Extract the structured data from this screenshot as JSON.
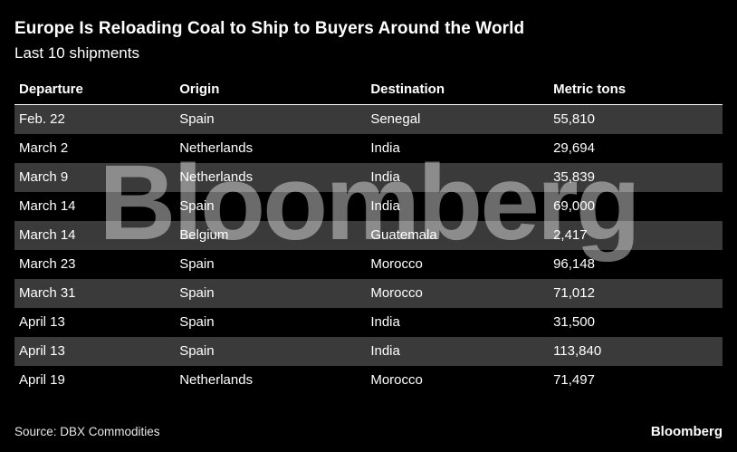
{
  "header": {
    "title": "Europe Is Reloading Coal to Ship to Buyers Around the World",
    "subtitle": "Last 10 shipments"
  },
  "watermark": {
    "text": "Bloomberg"
  },
  "footer": {
    "source": "Source: DBX Commodities",
    "brand": "Bloomberg"
  },
  "colors": {
    "background": "#000000",
    "row_alt": "#3a3a3a",
    "text": "#ffffff",
    "header_rule": "#ffffff",
    "watermark": "rgba(255,255,255,0.42)"
  },
  "chart_data": {
    "type": "table",
    "title": "Europe Is Reloading Coal to Ship to Buyers Around the World",
    "subtitle": "Last 10 shipments",
    "columns": [
      "Departure",
      "Origin",
      "Destination",
      "Metric tons"
    ],
    "rows": [
      [
        "Feb. 22",
        "Spain",
        "Senegal",
        "55,810"
      ],
      [
        "March 2",
        "Netherlands",
        "India",
        "29,694"
      ],
      [
        "March 9",
        "Netherlands",
        "India",
        "35,839"
      ],
      [
        "March 14",
        "Spain",
        "India",
        "69,000"
      ],
      [
        "March 14",
        "Belgium",
        "Guatemala",
        "2,417"
      ],
      [
        "March 23",
        "Spain",
        "Morocco",
        "96,148"
      ],
      [
        "March 31",
        "Spain",
        "Morocco",
        "71,012"
      ],
      [
        "April 13",
        "Spain",
        "India",
        "31,500"
      ],
      [
        "April 13",
        "Spain",
        "India",
        "113,840"
      ],
      [
        "April 19",
        "Netherlands",
        "Morocco",
        "71,497"
      ]
    ],
    "source": "Source: DBX Commodities",
    "legend_position": "none",
    "grid": false
  }
}
